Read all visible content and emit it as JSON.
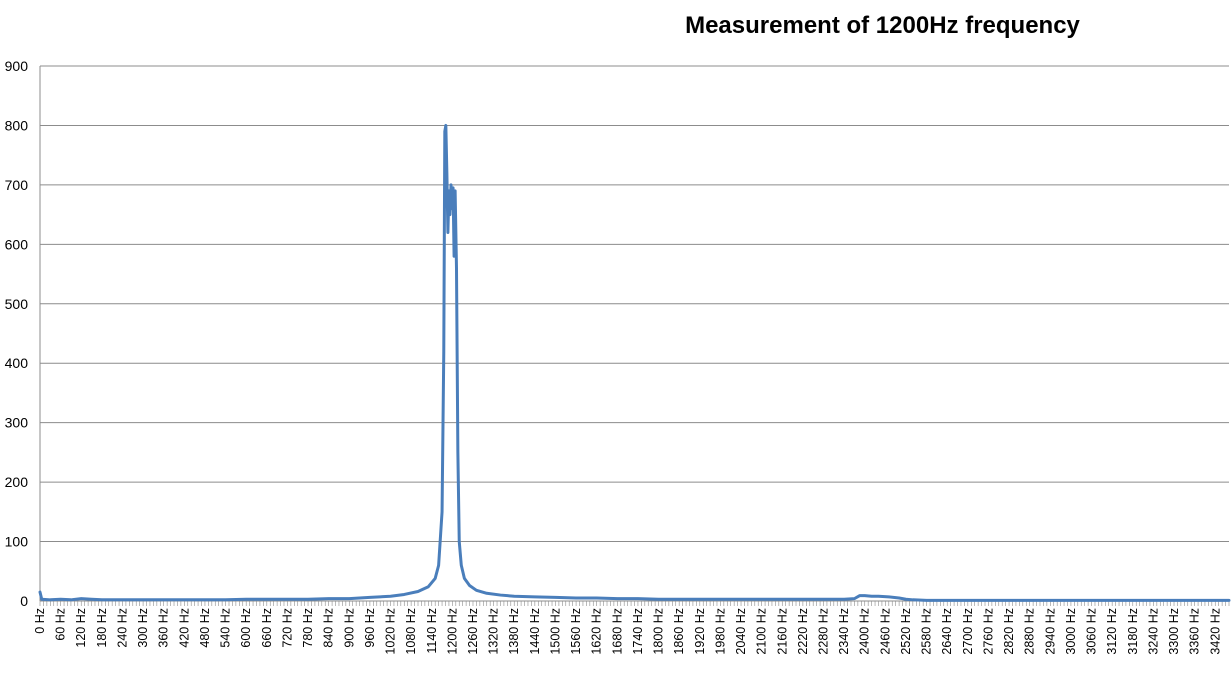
{
  "chart_data": {
    "type": "line",
    "title": "Measurement of 1200Hz frequency",
    "xlabel": "",
    "ylabel": "",
    "ylim": [
      0,
      900
    ],
    "y_ticks": [
      0,
      100,
      200,
      300,
      400,
      500,
      600,
      700,
      800,
      900
    ],
    "x_range_hz": [
      0,
      3460
    ],
    "x_tick_labels": [
      "0 Hz",
      "60 Hz",
      "120 Hz",
      "180 Hz",
      "240 Hz",
      "300 Hz",
      "360 Hz",
      "420 Hz",
      "480 Hz",
      "540 Hz",
      "600 Hz",
      "660 Hz",
      "720 Hz",
      "780 Hz",
      "840 Hz",
      "900 Hz",
      "960 Hz",
      "1020 Hz",
      "1080 Hz",
      "1140 Hz",
      "1200 Hz",
      "1260 Hz",
      "1320 Hz",
      "1380 Hz",
      "1440 Hz",
      "1500 Hz",
      "1560 Hz",
      "1620 Hz",
      "1680 Hz",
      "1740 Hz",
      "1800 Hz",
      "1860 Hz",
      "1920 Hz",
      "1980 Hz",
      "2040 Hz",
      "2100 Hz",
      "2160 Hz",
      "2220 Hz",
      "2280 Hz",
      "2340 Hz",
      "2400 Hz",
      "2460 Hz",
      "2520 Hz",
      "2580 Hz",
      "2640 Hz",
      "2700 Hz",
      "2760 Hz",
      "2820 Hz",
      "2880 Hz",
      "2940 Hz",
      "3000 Hz",
      "3060 Hz",
      "3120 Hz",
      "3180 Hz",
      "3240 Hz",
      "3300 Hz",
      "3360 Hz",
      "3420 Hz"
    ],
    "grid": true,
    "legend": "none",
    "line_color": "#4a7ebb",
    "series": [
      {
        "points": [
          [
            0,
            15
          ],
          [
            5,
            3
          ],
          [
            30,
            2
          ],
          [
            60,
            3
          ],
          [
            90,
            2
          ],
          [
            120,
            4
          ],
          [
            150,
            3
          ],
          [
            180,
            2
          ],
          [
            240,
            2
          ],
          [
            300,
            2
          ],
          [
            360,
            2
          ],
          [
            420,
            2
          ],
          [
            480,
            2
          ],
          [
            540,
            2
          ],
          [
            600,
            3
          ],
          [
            660,
            3
          ],
          [
            720,
            3
          ],
          [
            780,
            3
          ],
          [
            840,
            4
          ],
          [
            900,
            4
          ],
          [
            960,
            6
          ],
          [
            1020,
            8
          ],
          [
            1060,
            11
          ],
          [
            1100,
            16
          ],
          [
            1130,
            24
          ],
          [
            1150,
            38
          ],
          [
            1160,
            60
          ],
          [
            1170,
            150
          ],
          [
            1175,
            420
          ],
          [
            1178,
            790
          ],
          [
            1181,
            800
          ],
          [
            1184,
            720
          ],
          [
            1187,
            620
          ],
          [
            1190,
            690
          ],
          [
            1193,
            650
          ],
          [
            1196,
            700
          ],
          [
            1199,
            660
          ],
          [
            1202,
            695
          ],
          [
            1205,
            580
          ],
          [
            1208,
            690
          ],
          [
            1212,
            560
          ],
          [
            1216,
            250
          ],
          [
            1220,
            100
          ],
          [
            1226,
            60
          ],
          [
            1235,
            38
          ],
          [
            1250,
            26
          ],
          [
            1270,
            18
          ],
          [
            1300,
            13
          ],
          [
            1340,
            10
          ],
          [
            1380,
            8
          ],
          [
            1440,
            7
          ],
          [
            1500,
            6
          ],
          [
            1560,
            5
          ],
          [
            1620,
            5
          ],
          [
            1680,
            4
          ],
          [
            1740,
            4
          ],
          [
            1800,
            3
          ],
          [
            1860,
            3
          ],
          [
            1920,
            3
          ],
          [
            1980,
            3
          ],
          [
            2040,
            3
          ],
          [
            2100,
            3
          ],
          [
            2160,
            3
          ],
          [
            2220,
            3
          ],
          [
            2280,
            3
          ],
          [
            2340,
            3
          ],
          [
            2370,
            4
          ],
          [
            2385,
            9
          ],
          [
            2400,
            9
          ],
          [
            2420,
            8
          ],
          [
            2440,
            8
          ],
          [
            2470,
            7
          ],
          [
            2500,
            5
          ],
          [
            2520,
            3
          ],
          [
            2540,
            2
          ],
          [
            2580,
            1
          ],
          [
            2640,
            1
          ],
          [
            2700,
            1
          ],
          [
            2760,
            1
          ],
          [
            2820,
            1
          ],
          [
            2880,
            1
          ],
          [
            2940,
            1
          ],
          [
            3000,
            1
          ],
          [
            3060,
            1
          ],
          [
            3120,
            1
          ],
          [
            3180,
            1
          ],
          [
            3240,
            1
          ],
          [
            3300,
            1
          ],
          [
            3360,
            1
          ],
          [
            3420,
            1
          ],
          [
            3460,
            1
          ]
        ]
      }
    ]
  }
}
